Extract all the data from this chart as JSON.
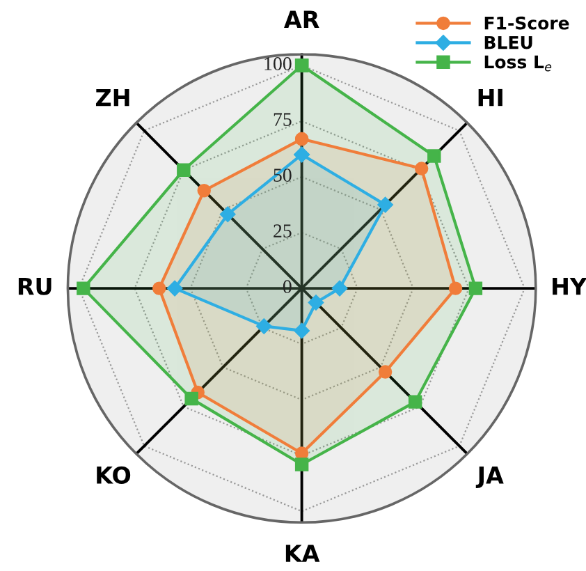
{
  "chart_data": {
    "type": "radar",
    "categories": [
      "AR",
      "HI",
      "HY",
      "JA",
      "KA",
      "KO",
      "RU",
      "ZH"
    ],
    "series": [
      {
        "name": "F1-Score",
        "color": "#f07d3a",
        "marker": "circle",
        "values": [
          67,
          76,
          69,
          53,
          74,
          66,
          64,
          62
        ]
      },
      {
        "name": "BLEU",
        "color": "#2eaee3",
        "marker": "diamond",
        "values": [
          60,
          53,
          17,
          9,
          19,
          24,
          57,
          47
        ]
      },
      {
        "name": "Loss L$_{e}$",
        "color": "#45b449",
        "marker": "square",
        "values": [
          100,
          84,
          78,
          72,
          79,
          70,
          98,
          75
        ]
      }
    ],
    "ylim": [
      0,
      105
    ],
    "yticks": [
      0,
      25,
      50,
      75,
      100
    ],
    "grid": true,
    "legend": "top right",
    "line_style": "solid"
  }
}
